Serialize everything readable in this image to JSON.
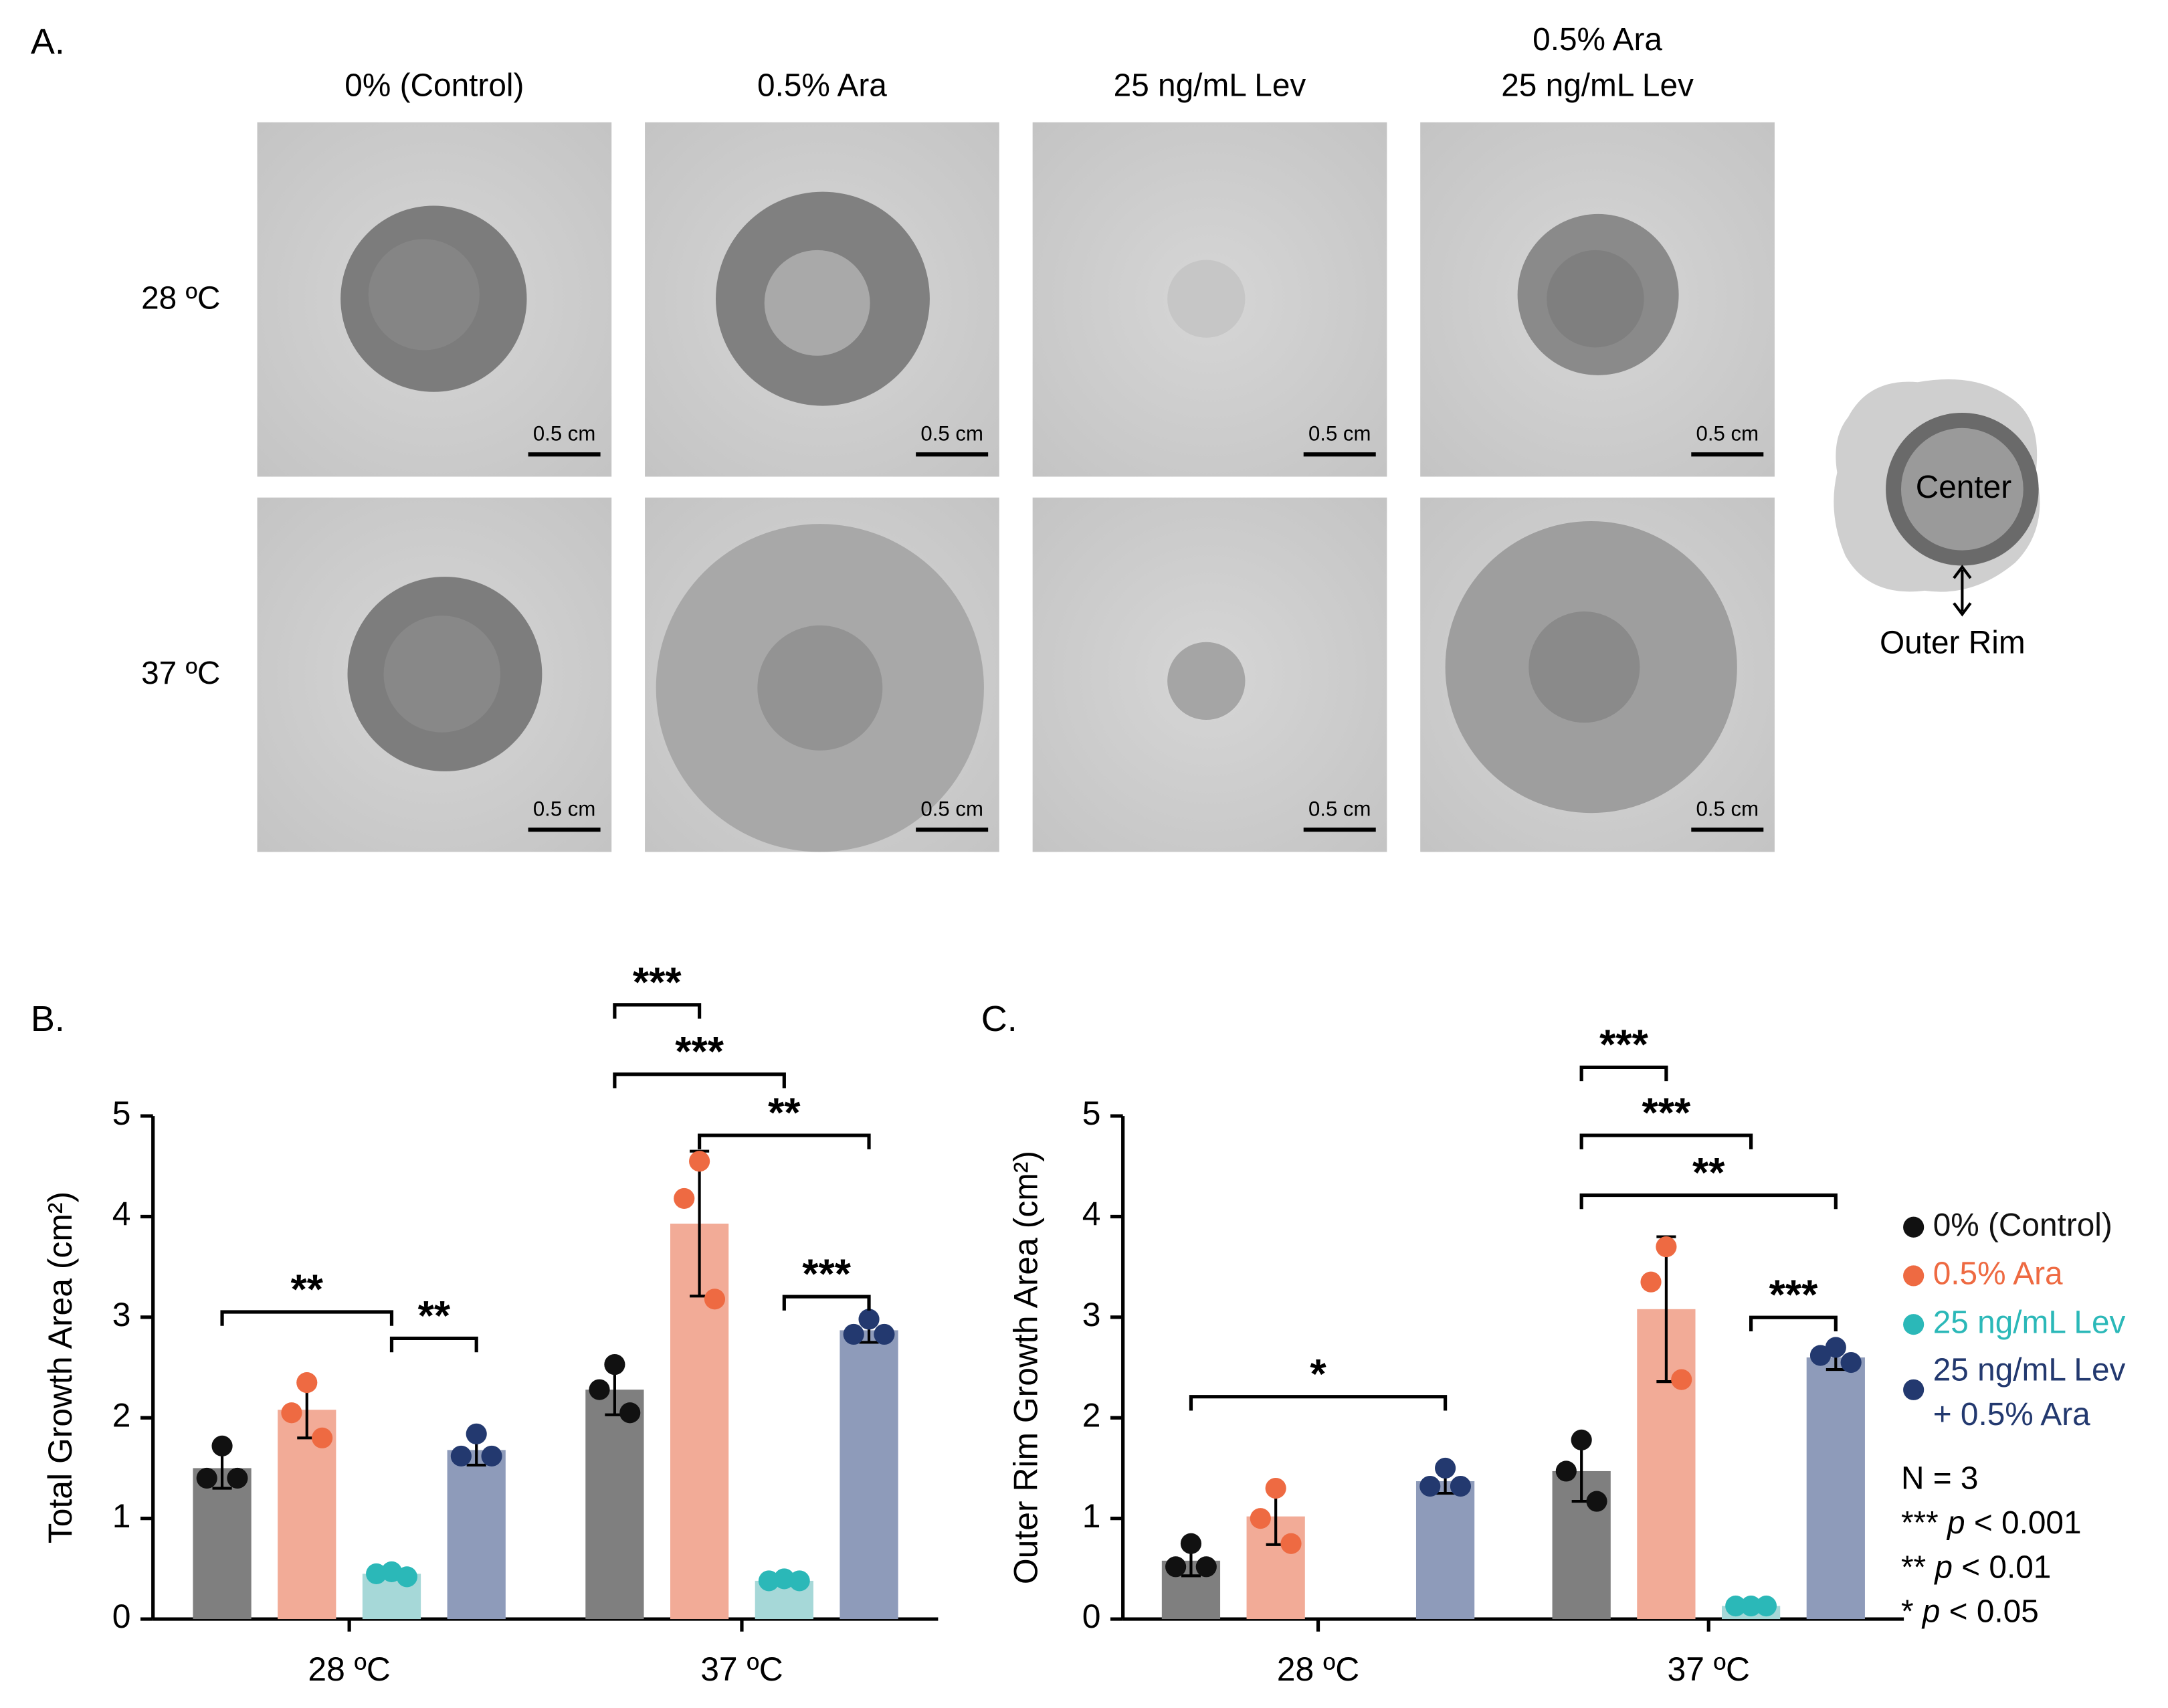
{
  "panel_a": {
    "letter": "A.",
    "column_headers": [
      [
        "0% (Control)"
      ],
      [
        "0.5% Ara"
      ],
      [
        "25 ng/mL Lev"
      ],
      [
        "0.5% Ara",
        "25 ng/mL Lev"
      ]
    ],
    "row_labels": [
      "28 ºC",
      "37 ºC"
    ],
    "scale_bar_label": "0.5 cm",
    "schematic": {
      "center_label": "Center",
      "rim_label": "Outer Rim"
    }
  },
  "chart_data": [
    {
      "type": "bar",
      "panel": "B.",
      "ylabel": "Total Growth Area (cm²)",
      "categories": [
        "28 ºC",
        "37 ºC"
      ],
      "ylim": [
        0,
        5
      ],
      "yticks": [
        0,
        1,
        2,
        3,
        4,
        5
      ],
      "series": [
        {
          "name": "0% (Control)",
          "color": "#111111",
          "bar_color": "#7f7f7f",
          "values": [
            1.5,
            2.28
          ],
          "errors": [
            0.2,
            0.25
          ],
          "points": [
            [
              1.72,
              1.4,
              1.4
            ],
            [
              2.53,
              2.28,
              2.05
            ]
          ]
        },
        {
          "name": "0.5% Ara",
          "color": "#ee6a42",
          "bar_color": "#f2ab97",
          "values": [
            2.08,
            3.93
          ],
          "errors": [
            0.28,
            0.72
          ],
          "points": [
            [
              2.35,
              2.05,
              1.8
            ],
            [
              4.55,
              4.18,
              3.18
            ]
          ]
        },
        {
          "name": "25 ng/mL Lev",
          "color": "#2bb8b8",
          "bar_color": "#a6d8d8",
          "values": [
            0.45,
            0.38
          ],
          "errors": [
            0.03,
            0.02
          ],
          "points": [
            [
              0.47,
              0.45,
              0.42
            ],
            [
              0.4,
              0.38,
              0.38
            ]
          ]
        },
        {
          "name": "25 ng/mL Lev + 0.5% Ara",
          "color": "#23396f",
          "bar_color": "#8e9bba",
          "values": [
            1.68,
            2.87
          ],
          "errors": [
            0.15,
            0.12
          ],
          "points": [
            [
              1.84,
              1.62,
              1.62
            ],
            [
              2.98,
              2.83,
              2.83
            ]
          ]
        }
      ],
      "annotations": [
        {
          "text": "**",
          "group": 0,
          "from": 0,
          "to": 2
        },
        {
          "text": "**",
          "group": 0,
          "from": 2,
          "to": 3
        },
        {
          "text": "***",
          "group": 1,
          "from": 0,
          "to": 1
        },
        {
          "text": "***",
          "group": 1,
          "from": 0,
          "to": 2
        },
        {
          "text": "**",
          "group": 1,
          "from": 1,
          "to": 3
        },
        {
          "text": "***",
          "group": 1,
          "from": 2,
          "to": 3
        }
      ]
    },
    {
      "type": "bar",
      "panel": "C.",
      "ylabel": "Outer Rim Growth Area (cm²)",
      "categories": [
        "28 ºC",
        "37 ºC"
      ],
      "ylim": [
        0,
        5
      ],
      "yticks": [
        0,
        1,
        2,
        3,
        4,
        5
      ],
      "series": [
        {
          "color": "#111111",
          "bar_color": "#7f7f7f",
          "values": [
            0.58,
            1.47
          ],
          "errors": [
            0.15,
            0.3
          ],
          "points": [
            [
              0.75,
              0.52,
              0.52
            ],
            [
              1.78,
              1.47,
              1.17
            ]
          ]
        },
        {
          "color": "#ee6a42",
          "bar_color": "#f2ab97",
          "values": [
            1.02,
            3.08
          ],
          "errors": [
            0.28,
            0.72
          ],
          "points": [
            [
              1.3,
              1.0,
              0.75
            ],
            [
              3.7,
              3.35,
              2.38
            ]
          ]
        },
        {
          "color": "#2bb8b8",
          "bar_color": "#a6d8d8",
          "values": [
            null,
            0.13
          ],
          "errors": [
            null,
            0.02
          ],
          "points": [
            null,
            [
              0.13,
              0.13,
              0.13
            ]
          ]
        },
        {
          "color": "#23396f",
          "bar_color": "#8e9bba",
          "values": [
            1.37,
            2.6
          ],
          "errors": [
            0.12,
            0.12
          ],
          "points": [
            [
              1.5,
              1.32,
              1.32
            ],
            [
              2.7,
              2.62,
              2.55
            ]
          ]
        }
      ],
      "annotations": [
        {
          "text": "*",
          "group": 0,
          "from": 0,
          "to": 3
        },
        {
          "text": "***",
          "group": 1,
          "from": 0,
          "to": 1
        },
        {
          "text": "***",
          "group": 1,
          "from": 0,
          "to": 2
        },
        {
          "text": "**",
          "group": 1,
          "from": 0,
          "to": 3
        },
        {
          "text": "***",
          "group": 1,
          "from": 2,
          "to": 3
        }
      ]
    }
  ],
  "notes": [
    "N = 3",
    "*** p < 0.001",
    "** p < 0.01",
    "* p < 0.05"
  ]
}
